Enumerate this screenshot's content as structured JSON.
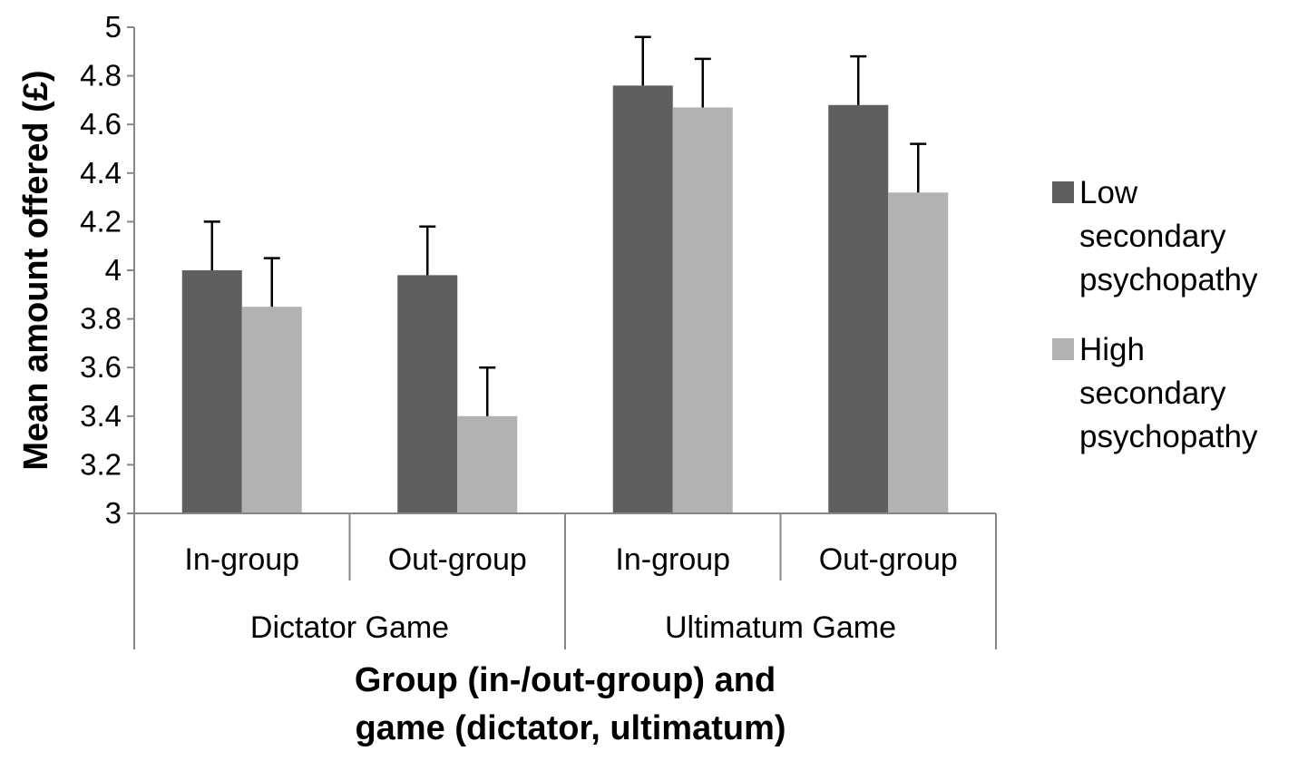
{
  "chart_data": {
    "type": "bar",
    "title": "",
    "ylabel": "Mean amount offered (£)",
    "xlabel_lines": [
      "Group (in-/out-group) and",
      "game (dictator, ultimatum)"
    ],
    "ylim": [
      3,
      5
    ],
    "yticks": [
      "3",
      "3.2",
      "3.4",
      "3.6",
      "3.8",
      "4",
      "4.2",
      "4.4",
      "4.6",
      "4.8",
      "5"
    ],
    "categories": [
      "In-group",
      "Out-group",
      "In-group",
      "Out-group"
    ],
    "groups": [
      {
        "label": "Dictator Game",
        "categories": [
          0,
          1
        ]
      },
      {
        "label": "Ultimatum Game",
        "categories": [
          2,
          3
        ]
      }
    ],
    "series": [
      {
        "name_lines": [
          "Low",
          "secondary",
          "psychopathy"
        ],
        "color": "#5f5f5f",
        "values": [
          4.0,
          3.98,
          4.76,
          4.68
        ],
        "error_upper": [
          4.2,
          4.18,
          4.96,
          4.88
        ]
      },
      {
        "name_lines": [
          "High",
          "secondary",
          "psychopathy"
        ],
        "color": "#b2b2b2",
        "values": [
          3.85,
          3.4,
          4.67,
          4.32
        ],
        "error_upper": [
          4.05,
          3.6,
          4.87,
          4.52
        ]
      }
    ],
    "legend_position": "right",
    "grid": false
  }
}
